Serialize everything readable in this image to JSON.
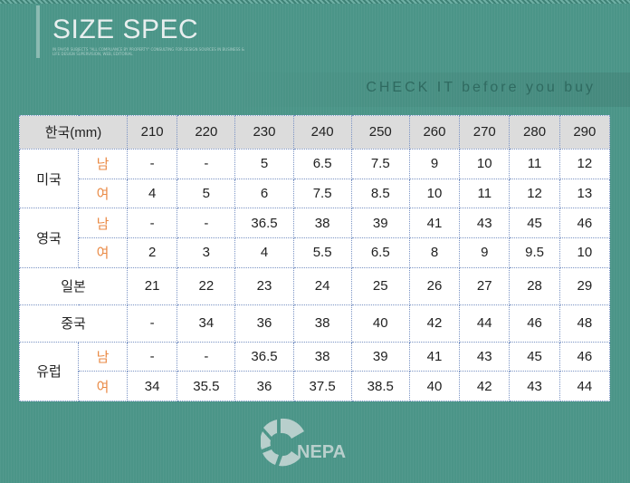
{
  "header": {
    "title": "SIZE SPEC",
    "subtitle": "IN FAVOR SUBJECTS \"ALL COMPLIANCE BY PROPERTY\" CONSULTING FOR DESIGN SOURCES IN BUSINESS & LIFE DESIGN SUPERVISION, WEB, EDITORIAL",
    "tagline": "CHECK IT before you buy"
  },
  "table": {
    "header_label": "한국(mm)",
    "sizes": [
      "210",
      "220",
      "230",
      "240",
      "250",
      "260",
      "270",
      "280",
      "290"
    ],
    "male": "남",
    "female": "여",
    "rows": [
      {
        "country": "미국",
        "male": [
          "-",
          "-",
          "5",
          "6.5",
          "7.5",
          "9",
          "10",
          "11",
          "12"
        ],
        "female": [
          "4",
          "5",
          "6",
          "7.5",
          "8.5",
          "10",
          "11",
          "12",
          "13"
        ]
      },
      {
        "country": "영국",
        "male": [
          "-",
          "-",
          "36.5",
          "38",
          "39",
          "41",
          "43",
          "45",
          "46"
        ],
        "female": [
          "2",
          "3",
          "4",
          "5.5",
          "6.5",
          "8",
          "9",
          "9.5",
          "10"
        ]
      },
      {
        "country": "일본",
        "values": [
          "21",
          "22",
          "23",
          "24",
          "25",
          "26",
          "27",
          "28",
          "29"
        ]
      },
      {
        "country": "중국",
        "values": [
          "-",
          "34",
          "36",
          "38",
          "40",
          "42",
          "44",
          "46",
          "48"
        ]
      },
      {
        "country": "유럽",
        "male": [
          "-",
          "-",
          "36.5",
          "38",
          "39",
          "41",
          "43",
          "45",
          "46"
        ],
        "female": [
          "34",
          "35.5",
          "36",
          "37.5",
          "38.5",
          "40",
          "42",
          "43",
          "44"
        ]
      }
    ]
  },
  "logo": {
    "text": "NEPA"
  },
  "colors": {
    "background": "#4b9588",
    "accent": "#ea8a45",
    "header_bg": "#dcdcdc"
  }
}
